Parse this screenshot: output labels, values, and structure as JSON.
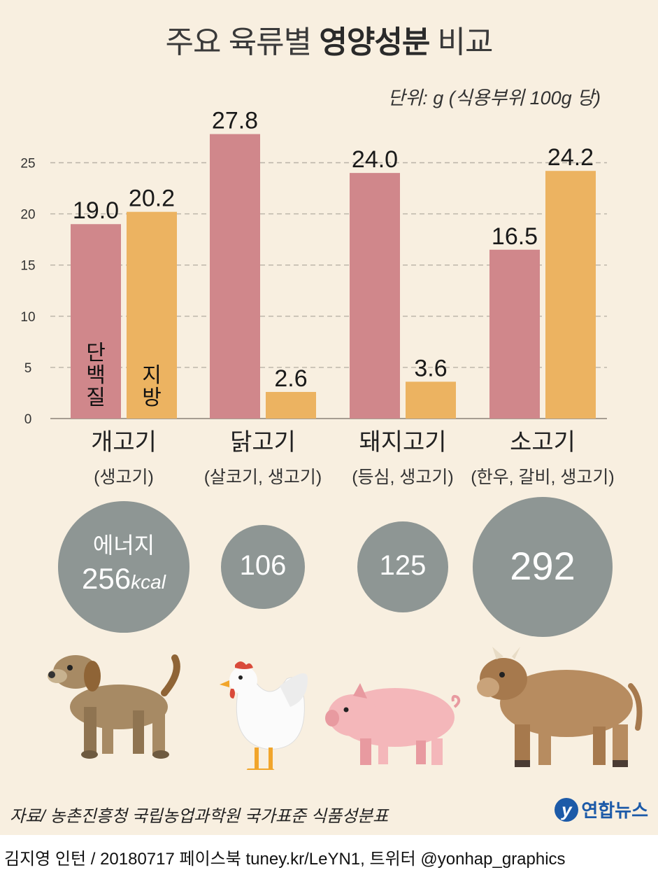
{
  "title_light": "주요 육류별 ",
  "title_bold": "영양성분",
  "title_end": " 비교",
  "unit_note": "단위: g (식용부위 100g 당)",
  "legend": {
    "protein": "단\n백\n질",
    "fat": "지\n방"
  },
  "colors": {
    "protein": "#d0878b",
    "fat": "#ecb361",
    "bubble": "#8e9694",
    "background": "#f8efe0"
  },
  "chart_data": {
    "type": "bar",
    "categories": [
      "개고기",
      "닭고기",
      "돼지고기",
      "소고기"
    ],
    "subtitles": [
      "(생고기)",
      "(살코기, 생고기)",
      "(등심, 생고기)",
      "(한우, 갈비, 생고기)"
    ],
    "series": [
      {
        "name": "단백질",
        "values": [
          19.0,
          27.8,
          24.0,
          16.5
        ]
      },
      {
        "name": "지방",
        "values": [
          20.2,
          2.6,
          3.6,
          24.2
        ]
      }
    ],
    "value_labels": [
      [
        "19.0",
        "27.8",
        "24.0",
        "16.5"
      ],
      [
        "20.2",
        "2.6",
        "3.6",
        "24.2"
      ]
    ],
    "yticks": [
      0,
      5,
      10,
      15,
      20,
      25
    ],
    "ylim": [
      0,
      28
    ],
    "grid": true,
    "energy_label": "에너지",
    "energy": [
      256,
      106,
      125,
      292
    ],
    "energy_unit": "kcal"
  },
  "animals": [
    "dog-icon",
    "chicken-icon",
    "pig-icon",
    "cow-icon"
  ],
  "source": "자료/ 농촌진흥청 국립농업과학원 국가표준  식품성분표",
  "logo_text": "연합뉴스",
  "credit": "김지영 인턴 / 20180717 페이스북 tuney.kr/LeYN1, 트위터 @yonhap_graphics"
}
